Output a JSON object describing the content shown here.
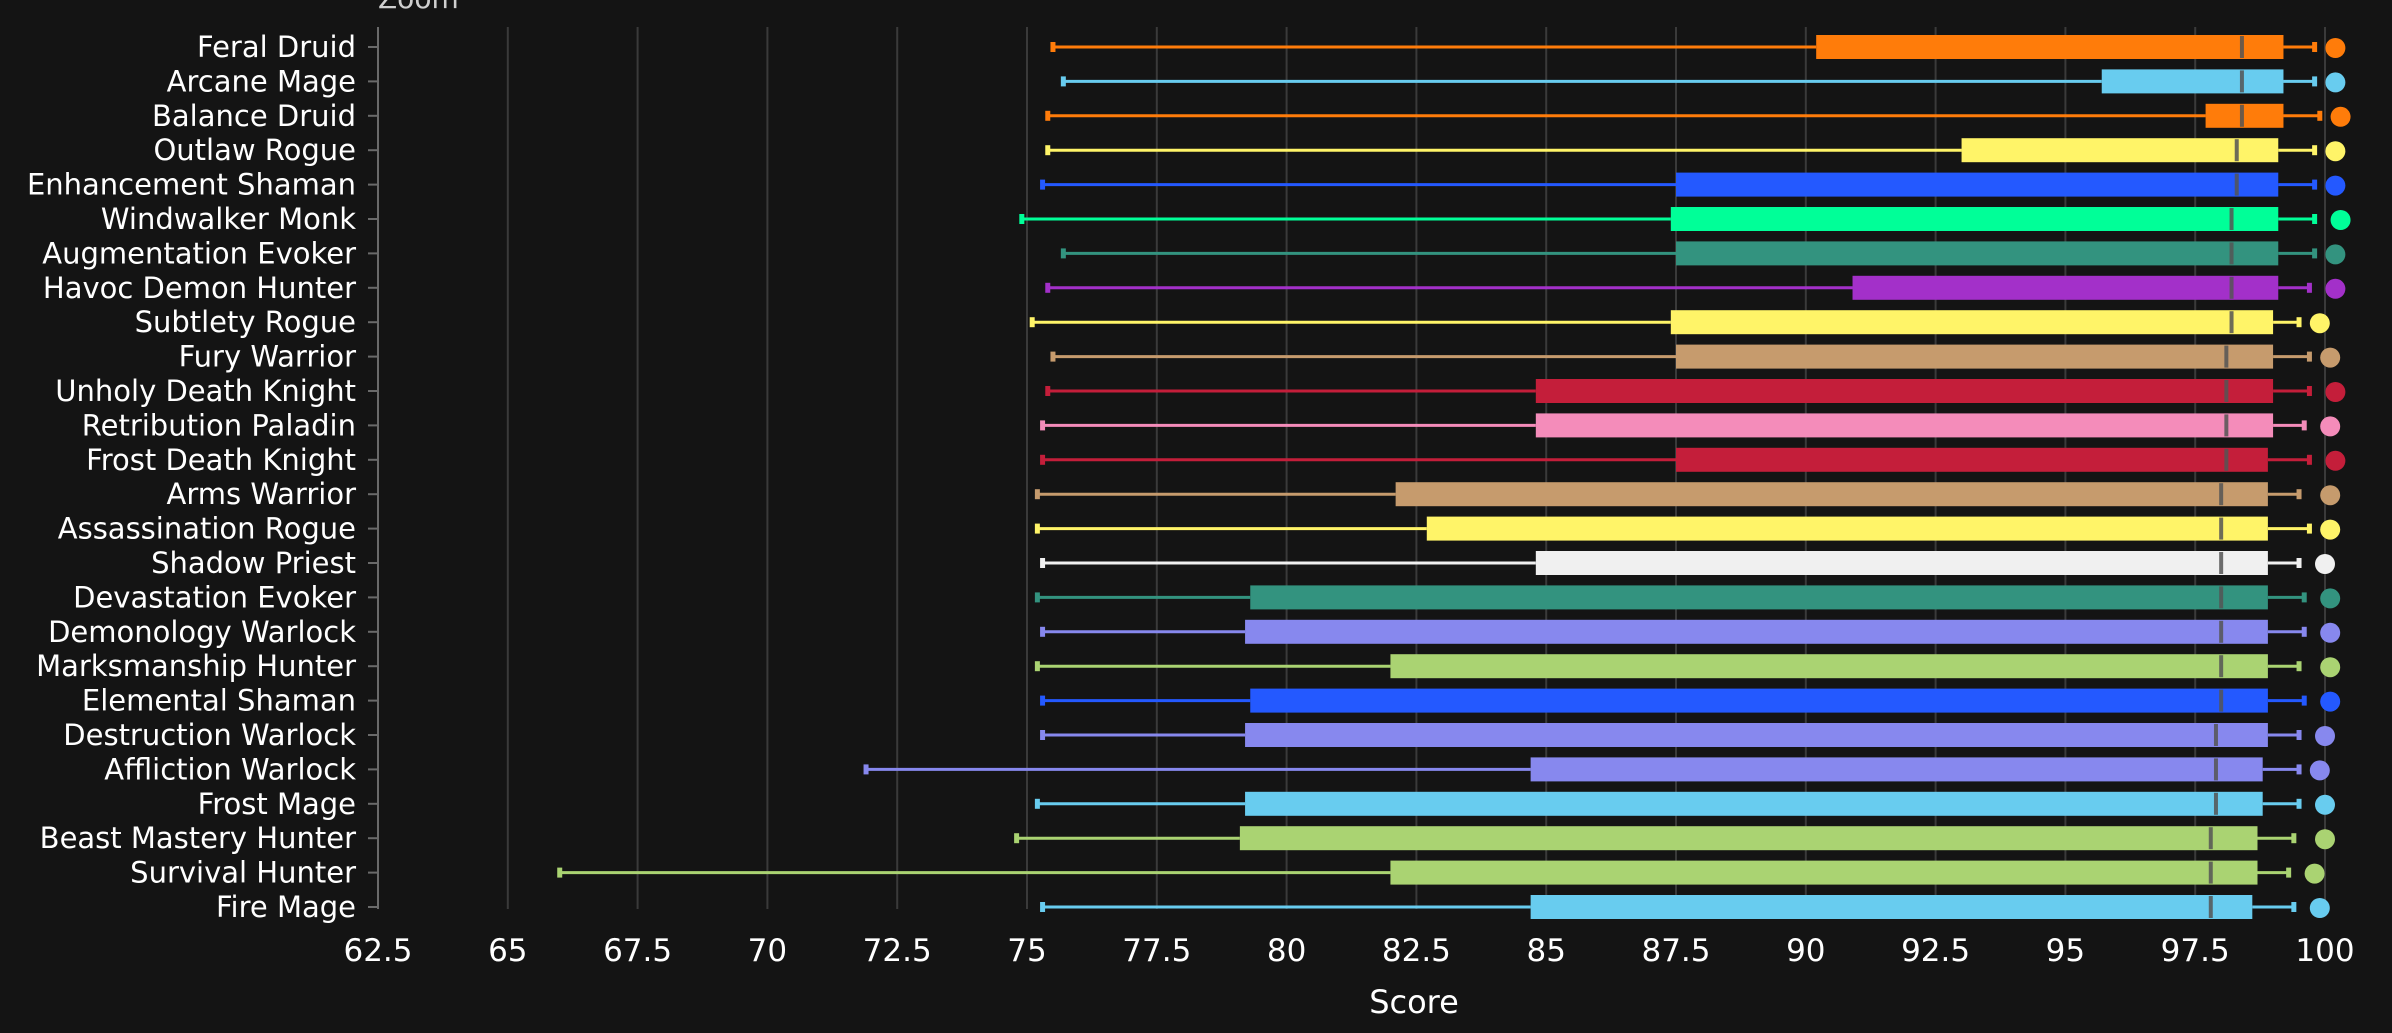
{
  "zoom_label": "Zoom",
  "chart_data": {
    "type": "boxplot",
    "xlabel": "Score",
    "xlim": [
      62.5,
      100
    ],
    "xticks": [
      "62.5",
      "65",
      "67.5",
      "70",
      "72.5",
      "75",
      "77.5",
      "80",
      "82.5",
      "85",
      "87.5",
      "90",
      "92.5",
      "95",
      "97.5",
      "100"
    ],
    "grid": true,
    "series": [
      {
        "name": "Feral Druid",
        "color": "#ff7c0a",
        "min": 75.5,
        "q1": 90.2,
        "median": 98.4,
        "q3": 99.2,
        "max": 99.8,
        "point": 100.2
      },
      {
        "name": "Arcane Mage",
        "color": "#68ccef",
        "min": 75.7,
        "q1": 95.7,
        "median": 98.4,
        "q3": 99.2,
        "max": 99.8,
        "point": 100.2
      },
      {
        "name": "Balance Druid",
        "color": "#ff7c0a",
        "min": 75.4,
        "q1": 97.7,
        "median": 98.4,
        "q3": 99.2,
        "max": 99.9,
        "point": 100.3
      },
      {
        "name": "Outlaw Rogue",
        "color": "#fff468",
        "min": 75.4,
        "q1": 93.0,
        "median": 98.3,
        "q3": 99.1,
        "max": 99.8,
        "point": 100.2
      },
      {
        "name": "Enhancement Shaman",
        "color": "#2459ff",
        "min": 75.3,
        "q1": 87.5,
        "median": 98.3,
        "q3": 99.1,
        "max": 99.8,
        "point": 100.2
      },
      {
        "name": "Windwalker Monk",
        "color": "#00ff98",
        "min": 74.9,
        "q1": 87.4,
        "median": 98.2,
        "q3": 99.1,
        "max": 99.8,
        "point": 100.3
      },
      {
        "name": "Augmentation Evoker",
        "color": "#33937f",
        "min": 75.7,
        "q1": 87.5,
        "median": 98.2,
        "q3": 99.1,
        "max": 99.8,
        "point": 100.2
      },
      {
        "name": "Havoc Demon Hunter",
        "color": "#a330c9",
        "min": 75.4,
        "q1": 90.9,
        "median": 98.2,
        "q3": 99.1,
        "max": 99.7,
        "point": 100.2
      },
      {
        "name": "Subtlety Rogue",
        "color": "#fff468",
        "min": 75.1,
        "q1": 87.4,
        "median": 98.2,
        "q3": 99.0,
        "max": 99.5,
        "point": 99.9
      },
      {
        "name": "Fury Warrior",
        "color": "#c69b6d",
        "min": 75.5,
        "q1": 87.5,
        "median": 98.1,
        "q3": 99.0,
        "max": 99.7,
        "point": 100.1
      },
      {
        "name": "Unholy Death Knight",
        "color": "#c41e3a",
        "min": 75.4,
        "q1": 84.8,
        "median": 98.1,
        "q3": 99.0,
        "max": 99.7,
        "point": 100.2
      },
      {
        "name": "Retribution Paladin",
        "color": "#f48cba",
        "min": 75.3,
        "q1": 84.8,
        "median": 98.1,
        "q3": 99.0,
        "max": 99.6,
        "point": 100.1
      },
      {
        "name": "Frost Death Knight",
        "color": "#c41e3a",
        "min": 75.3,
        "q1": 87.5,
        "median": 98.1,
        "q3": 98.9,
        "max": 99.7,
        "point": 100.2
      },
      {
        "name": "Arms Warrior",
        "color": "#c69b6d",
        "min": 75.2,
        "q1": 82.1,
        "median": 98.0,
        "q3": 98.9,
        "max": 99.5,
        "point": 100.1
      },
      {
        "name": "Assassination Rogue",
        "color": "#fff468",
        "min": 75.2,
        "q1": 82.7,
        "median": 98.0,
        "q3": 98.9,
        "max": 99.7,
        "point": 100.1
      },
      {
        "name": "Shadow Priest",
        "color": "#f0f0f0",
        "min": 75.3,
        "q1": 84.8,
        "median": 98.0,
        "q3": 98.9,
        "max": 99.5,
        "point": 100.0
      },
      {
        "name": "Devastation Evoker",
        "color": "#33937f",
        "min": 75.2,
        "q1": 79.3,
        "median": 98.0,
        "q3": 98.9,
        "max": 99.6,
        "point": 100.1
      },
      {
        "name": "Demonology Warlock",
        "color": "#8788ee",
        "min": 75.3,
        "q1": 79.2,
        "median": 98.0,
        "q3": 98.9,
        "max": 99.6,
        "point": 100.1
      },
      {
        "name": "Marksmanship Hunter",
        "color": "#aad372",
        "min": 75.2,
        "q1": 82.0,
        "median": 98.0,
        "q3": 98.9,
        "max": 99.5,
        "point": 100.1
      },
      {
        "name": "Elemental Shaman",
        "color": "#2459ff",
        "min": 75.3,
        "q1": 79.3,
        "median": 98.0,
        "q3": 98.9,
        "max": 99.6,
        "point": 100.1
      },
      {
        "name": "Destruction Warlock",
        "color": "#8788ee",
        "min": 75.3,
        "q1": 79.2,
        "median": 97.9,
        "q3": 98.9,
        "max": 99.5,
        "point": 100.0
      },
      {
        "name": "Affliction Warlock",
        "color": "#8788ee",
        "min": 71.9,
        "q1": 84.7,
        "median": 97.9,
        "q3": 98.8,
        "max": 99.5,
        "point": 99.9
      },
      {
        "name": "Frost Mage",
        "color": "#68ccef",
        "min": 75.2,
        "q1": 79.2,
        "median": 97.9,
        "q3": 98.8,
        "max": 99.5,
        "point": 100.0
      },
      {
        "name": "Beast Mastery Hunter",
        "color": "#aad372",
        "min": 74.8,
        "q1": 79.1,
        "median": 97.8,
        "q3": 98.7,
        "max": 99.4,
        "point": 100.0
      },
      {
        "name": "Survival Hunter",
        "color": "#aad372",
        "min": 66.0,
        "q1": 82.0,
        "median": 97.8,
        "q3": 98.7,
        "max": 99.3,
        "point": 99.8
      },
      {
        "name": "Fire Mage",
        "color": "#68ccef",
        "min": 75.3,
        "q1": 84.7,
        "median": 97.8,
        "q3": 98.6,
        "max": 99.4,
        "point": 99.9
      }
    ]
  }
}
